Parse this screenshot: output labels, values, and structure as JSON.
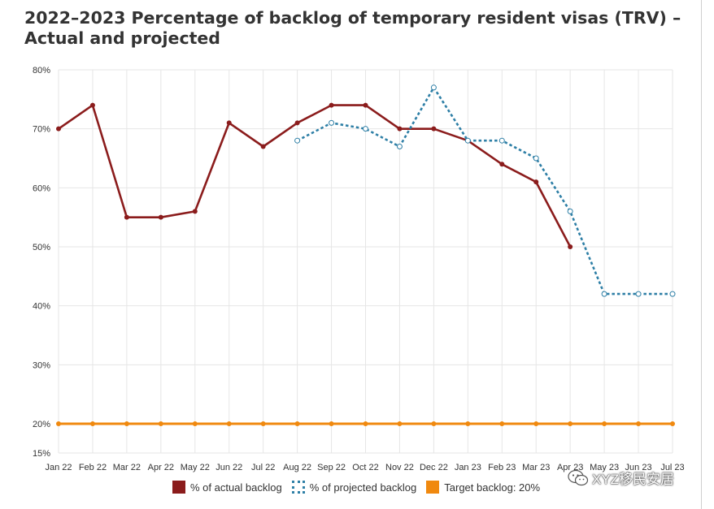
{
  "chart_data": {
    "type": "line",
    "title": "2022–2023 Percentage of backlog of temporary resident visas (TRV) – Actual and projected",
    "categories": [
      "Jan 22",
      "Feb 22",
      "Mar 22",
      "Apr 22",
      "May 22",
      "Jun 22",
      "Jul 22",
      "Aug 22",
      "Sep 22",
      "Oct 22",
      "Nov 22",
      "Dec 22",
      "Jan 23",
      "Feb 23",
      "Mar 23",
      "Apr 23",
      "May 23",
      "Jun 23",
      "Jul 23"
    ],
    "y_ticks": [
      15,
      20,
      30,
      40,
      50,
      60,
      70,
      80
    ],
    "y_tick_labels": [
      "15%",
      "20%",
      "30%",
      "40%",
      "50%",
      "60%",
      "70%",
      "80%"
    ],
    "ylim": [
      15,
      80
    ],
    "grid": true,
    "legend_position": "bottom",
    "series": [
      {
        "name": "% of actual backlog",
        "color": "#8b1c1c",
        "style": "solid",
        "values": [
          70,
          74,
          55,
          55,
          56,
          71,
          67,
          71,
          74,
          74,
          70,
          70,
          68,
          64,
          61,
          50,
          null,
          null,
          null
        ]
      },
      {
        "name": "% of projected backlog",
        "color": "#2e7fa6",
        "style": "dotted",
        "values": [
          null,
          null,
          null,
          null,
          null,
          null,
          null,
          68,
          71,
          70,
          67,
          77,
          68,
          68,
          65,
          56,
          42,
          42,
          42
        ]
      },
      {
        "name": "Target backlog: 20%",
        "color": "#f0890f",
        "style": "solid",
        "values": [
          20,
          20,
          20,
          20,
          20,
          20,
          20,
          20,
          20,
          20,
          20,
          20,
          20,
          20,
          20,
          20,
          20,
          20,
          20
        ]
      }
    ]
  },
  "watermark": {
    "text": "XYZ移民安居",
    "icon": "wechat-icon"
  }
}
